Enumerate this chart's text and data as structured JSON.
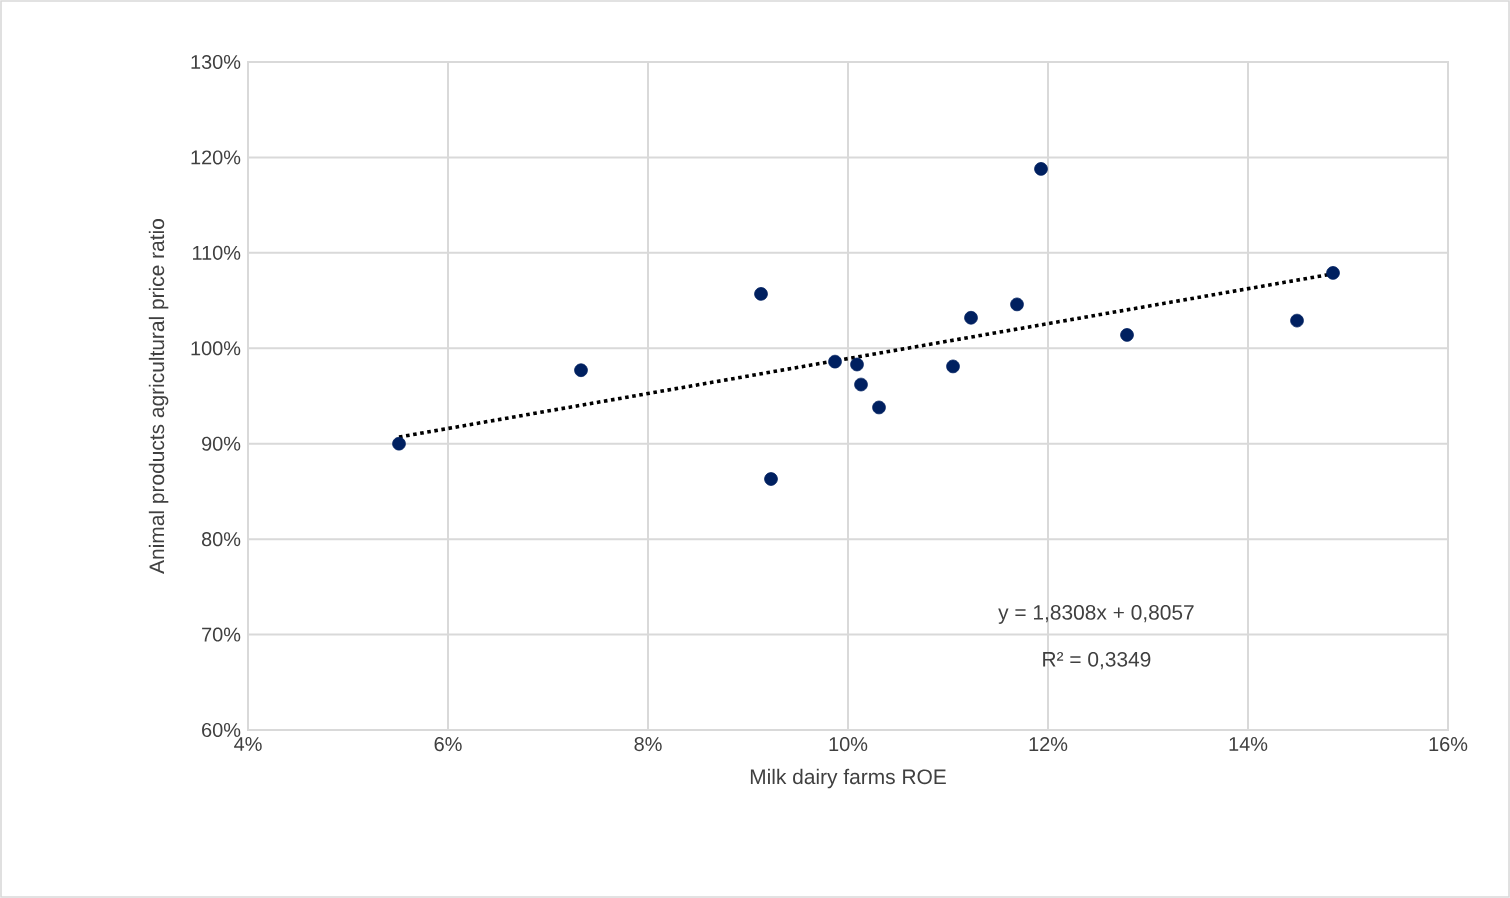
{
  "chart_data": {
    "type": "scatter",
    "xlabel": "Milk dairy farms ROE",
    "ylabel": "Animal products agricultural price ratio",
    "series": [
      {
        "color": "#002060",
        "marker": "circle",
        "x": [
          5.51,
          7.33,
          9.13,
          9.23,
          9.87,
          10.09,
          10.13,
          10.31,
          11.05,
          11.23,
          11.69,
          11.93,
          12.79,
          14.49,
          14.85
        ],
        "values": [
          90.0,
          97.7,
          105.7,
          86.3,
          98.6,
          98.3,
          96.2,
          93.8,
          98.1,
          103.2,
          104.6,
          118.8,
          101.4,
          102.9,
          107.9
        ]
      },
      {
        "type": "line",
        "color": "#000000",
        "line_style": "dotted",
        "x": [
          5.51,
          14.85
        ],
        "values": [
          90.7,
          107.8
        ]
      }
    ],
    "xlim": [
      4,
      16
    ],
    "xticks": [
      {
        "value": 4,
        "label": "4%"
      },
      {
        "value": 6,
        "label": "6%"
      },
      {
        "value": 8,
        "label": "8%"
      },
      {
        "value": 10,
        "label": "10%"
      },
      {
        "value": 12,
        "label": "12%"
      },
      {
        "value": 14,
        "label": "14%"
      },
      {
        "value": 16,
        "label": "16%"
      }
    ],
    "ylim": [
      60,
      130
    ],
    "yticks": [
      {
        "value": 60,
        "label": "60%"
      },
      {
        "value": 70,
        "label": "70%"
      },
      {
        "value": 80,
        "label": "80%"
      },
      {
        "value": 90,
        "label": "90%"
      },
      {
        "value": 100,
        "label": "100%"
      },
      {
        "value": 110,
        "label": "110%"
      },
      {
        "value": 120,
        "label": "120%"
      },
      {
        "value": 130,
        "label": "130%"
      }
    ],
    "grid": true,
    "annotations": [
      "y = 1,8308x + 0,8057",
      "R² = 0,3349"
    ]
  }
}
